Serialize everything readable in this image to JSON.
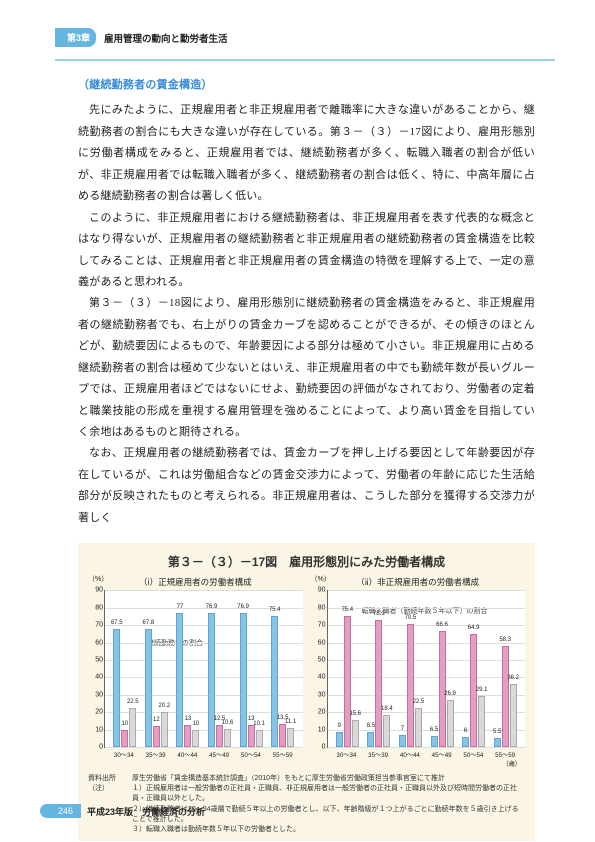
{
  "header": {
    "chapter_tab": "第3章",
    "chapter_title": "雇用管理の動向と勤労者生活"
  },
  "subhead": "（継続勤務者の賃金構造）",
  "paragraphs": [
    "先にみたように、正規雇用者と非正規雇用者で離職率に大きな違いがあることから、継続勤務者の割合にも大きな違いが存在している。第３－（３）－17図により、雇用形態別に労働者構成をみると、正規雇用者では、継続勤務者が多く、転職入職者の割合が低いが、非正規雇用者では転職入職者が多く、継続勤務者の割合は低く、特に、中高年層に占める継続勤務者の割合は著しく低い。",
    "このように、非正規雇用者における継続勤務者は、非正規雇用者を表す代表的な概念とはなり得ないが、正規雇用者の継続勤務者と非正規雇用者の継続勤務者の賃金構造を比較してみることは、正規雇用者と非正規雇用者の賃金構造の特徴を理解する上で、一定の意義があると思われる。",
    "第３－（３）－18図により、雇用形態別に継続勤務者の賃金構造をみると、非正規雇用者の継続勤務者でも、右上がりの賃金カーブを認めることができるが、その傾きのほとんどが、勤続要因によるもので、年齢要因による部分は極めて小さい。非正規雇用に占める継続勤務者の割合は極めて少ないとはいえ、非正規雇用者の中でも勤続年数が長いグループでは、正規雇用者ほどではないにせよ、勤続要因の評価がなされており、労働者の定着と職業技能の形成を重視する雇用管理を強めることによって、より高い賃金を目指していく余地はあるものと期待される。",
    "なお、正規雇用者の継続勤務者では、賃金カーブを押し上げる要因として年齢要因が存在しているが、これは労働組合などの賃金交渉力によって、労働者の年齢に応じた生活給部分が反映されたものと考えられる。非正規雇用者は、こうした部分を獲得する交渉力が著しく"
  ],
  "figure": {
    "title": "第３－（３）－17図　雇用形態別にみた労働者構成",
    "y_unit": "（%）",
    "ymax": 90,
    "y_ticks": [
      0,
      10,
      20,
      30,
      40,
      50,
      60,
      70,
      80,
      90
    ],
    "x_labels": [
      "30～34",
      "35～39",
      "40～44",
      "45～49",
      "50～54",
      "55～59"
    ],
    "x_age_suffix": "（歳）",
    "left": {
      "subtitle": "（ⅰ）正規雇用者の労働者構成",
      "annotation": "継続勤務者の割合",
      "series": [
        {
          "cls": "a",
          "vals": [
            67.5,
            67.8,
            77.0,
            76.9,
            76.9,
            75.4
          ]
        },
        {
          "cls": "b",
          "vals": [
            10.0,
            12.0,
            13.0,
            12.5,
            13.0,
            13.5
          ]
        },
        {
          "cls": "c",
          "vals": [
            22.5,
            20.2,
            10.0,
            10.6,
            10.1,
            11.1
          ]
        }
      ]
    },
    "right": {
      "subtitle": "（ⅱ）非正規雇用者の労働者構成",
      "annotation": "転職入職者（勤続年数５年以下）の割合",
      "series": [
        {
          "cls": "a",
          "vals": [
            9.0,
            8.5,
            7.0,
            6.5,
            6.0,
            5.5
          ]
        },
        {
          "cls": "b",
          "vals": [
            75.4,
            73.1,
            70.5,
            66.6,
            64.9,
            58.3
          ]
        },
        {
          "cls": "c",
          "vals": [
            15.6,
            18.4,
            22.5,
            26.9,
            29.1,
            36.2
          ]
        }
      ]
    },
    "notes": {
      "source_head": "資料出所",
      "source": "厚生労働省「賃金構造基本統計調査」（2010年）をもとに厚生労働省労働政策担当参事官室にて推計",
      "note_head": "（注）",
      "note_lines": [
        "１）正規雇用者は一般労働者の正社員・正職員、非正規雇用者は一般労働者の正社員・正職員以外及び短時間労働者の正社員・正職員以外とした。",
        "２）継続勤務者は30～34歳層で勤続５年以上の労働者とし、以下、年齢階級が１つ上がるごとに勤続年数を５歳引き上げることで推計した。",
        "３）転職入職者は勤続年数５年以下の労働者とした。"
      ]
    }
  },
  "footer": {
    "page": "246",
    "text": "平成23年版　労働経済の分析"
  },
  "colors": {
    "accent": "#66b4e0",
    "figbg": "#faf5e4"
  }
}
